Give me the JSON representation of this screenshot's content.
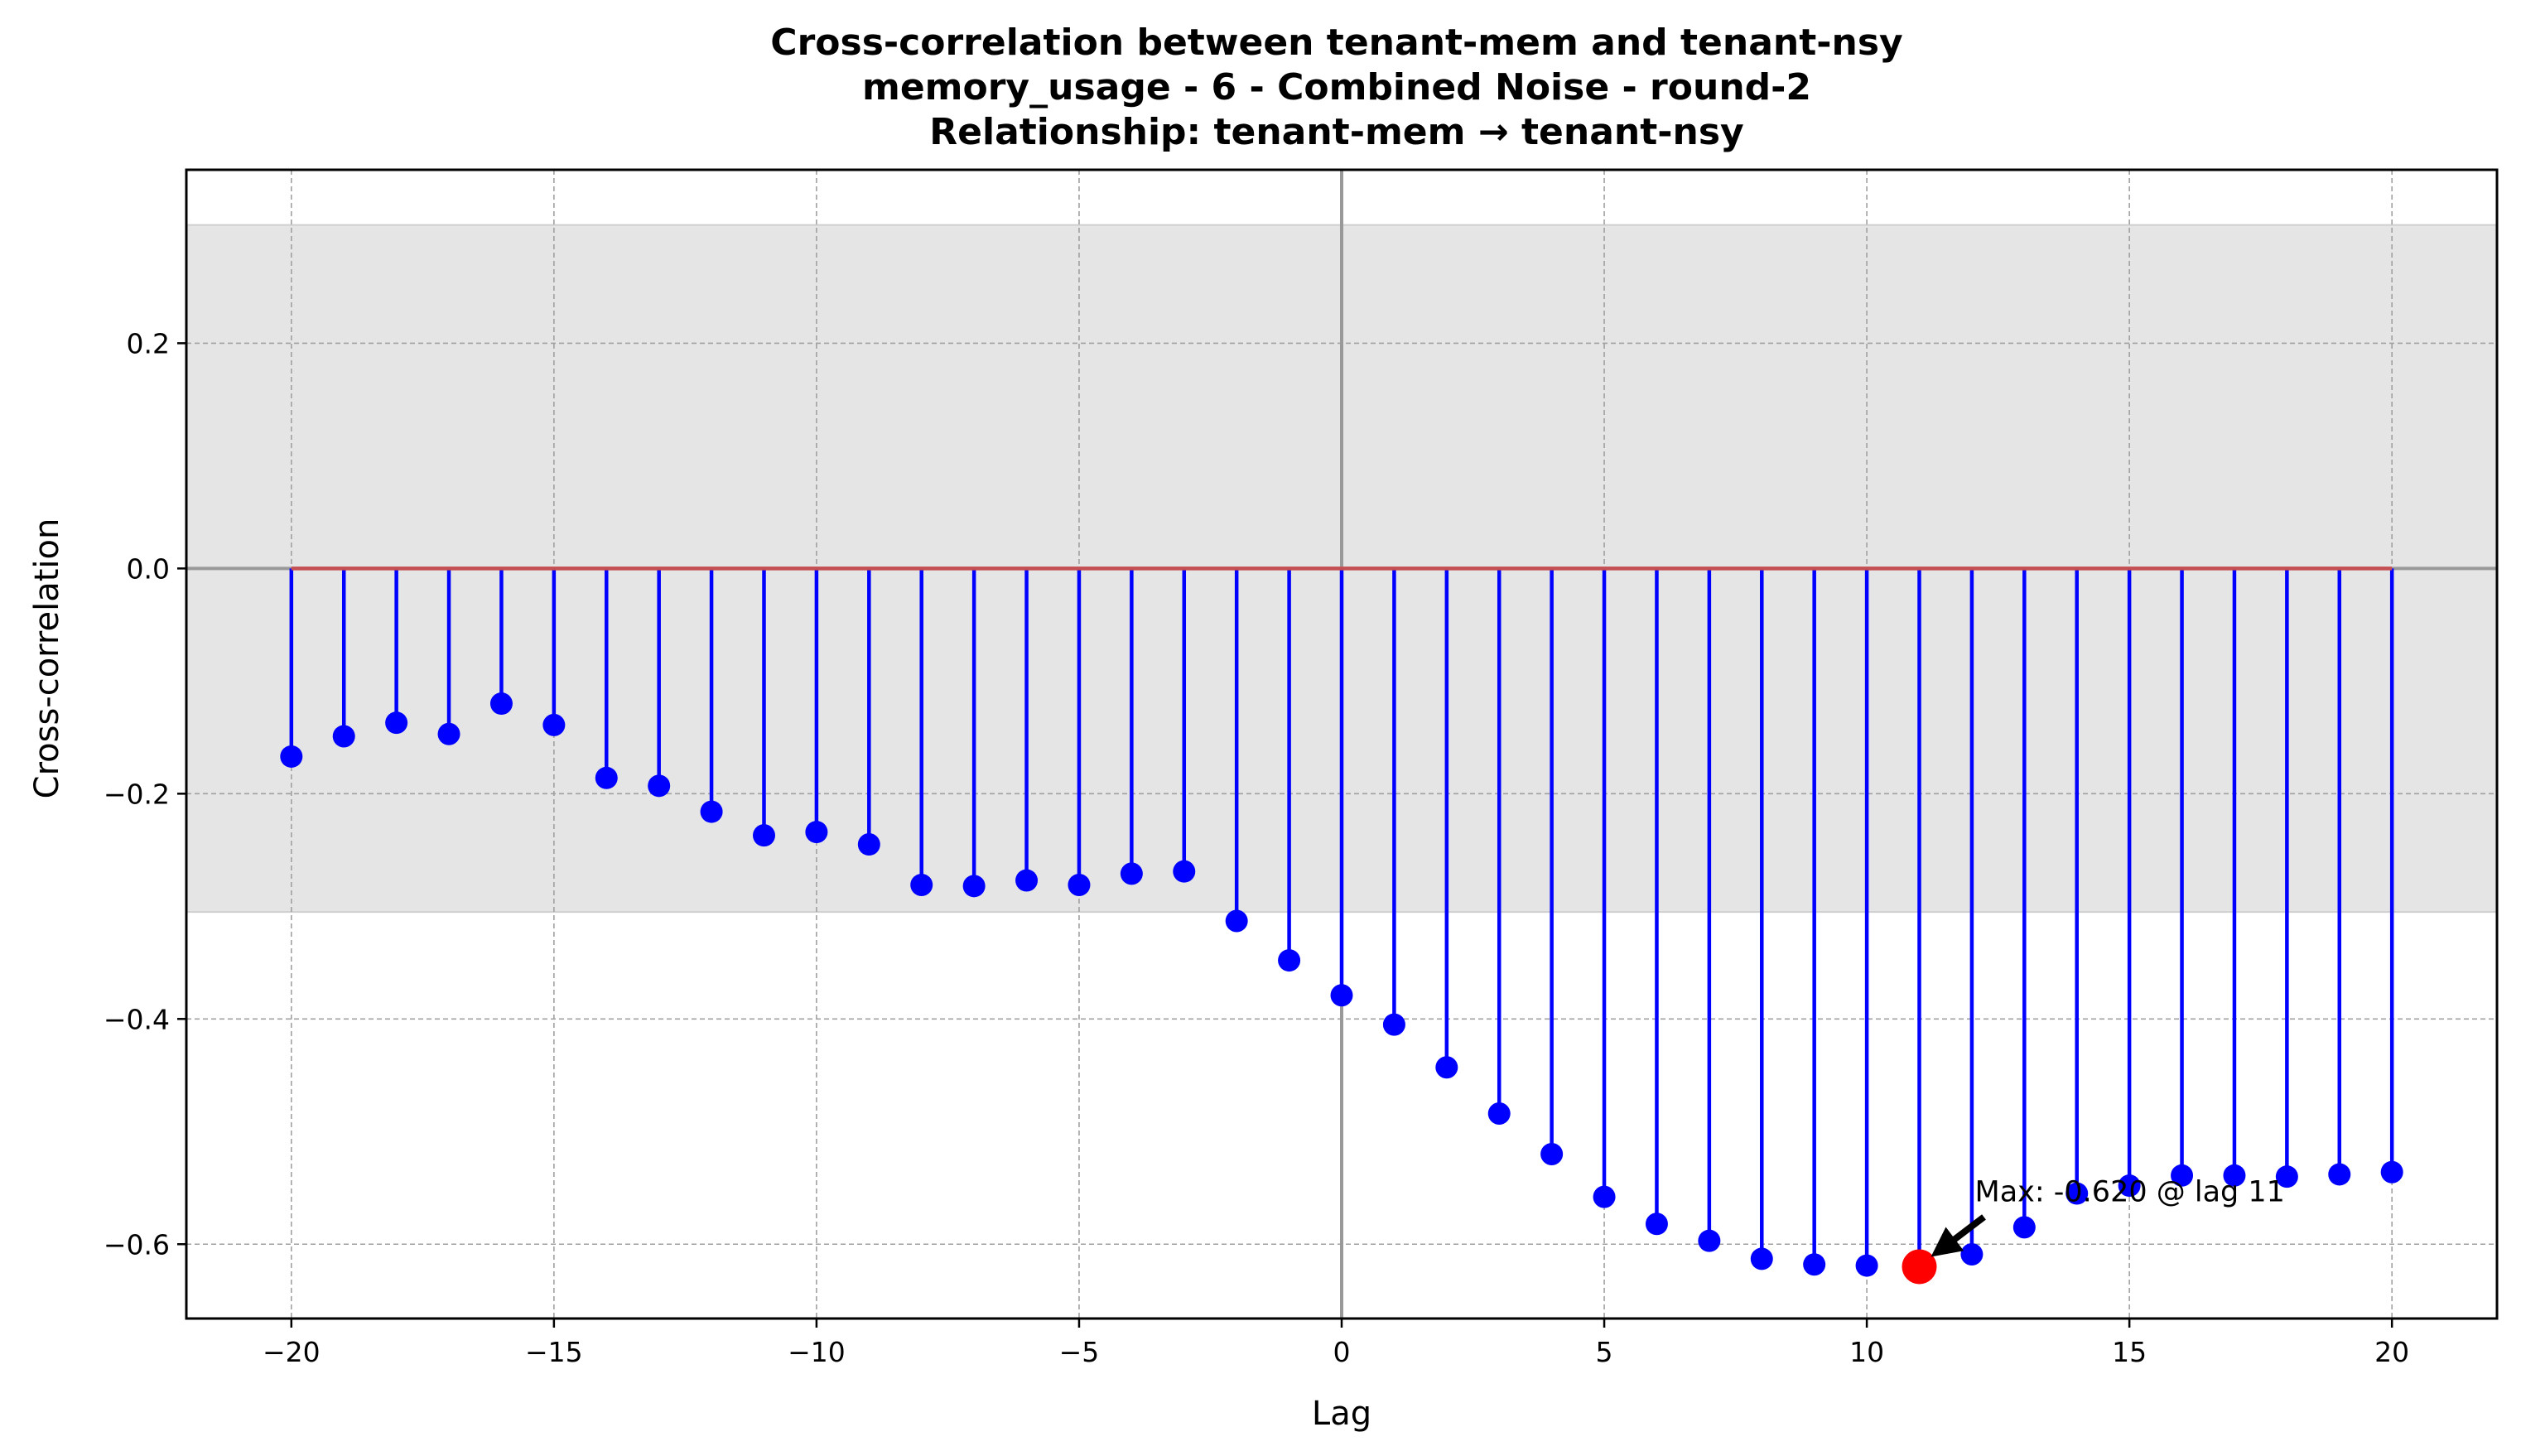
{
  "chart_data": {
    "type": "stem",
    "title_lines": [
      "Cross-correlation between tenant-mem and tenant-nsy",
      "memory_usage - 6 - Combined Noise - round-2",
      "Relationship: tenant-mem → tenant-nsy"
    ],
    "xlabel": "Lag",
    "ylabel": "Cross-correlation",
    "xlim": [
      -22,
      22
    ],
    "ylim": [
      -0.666,
      0.354
    ],
    "x_ticks": [
      -20,
      -15,
      -10,
      -5,
      0,
      5,
      10,
      15,
      20
    ],
    "x_tick_labels": [
      "−20",
      "−15",
      "−10",
      "−5",
      "0",
      "5",
      "10",
      "15",
      "20"
    ],
    "y_ticks": [
      -0.6,
      -0.4,
      -0.2,
      0.0,
      0.2
    ],
    "y_tick_labels": [
      "−0.6",
      "−0.4",
      "−0.2",
      "0.0",
      "0.2"
    ],
    "grid": true,
    "confidence_band": [
      -0.305,
      0.305
    ],
    "x": [
      -20,
      -19,
      -18,
      -17,
      -16,
      -15,
      -14,
      -13,
      -12,
      -11,
      -10,
      -9,
      -8,
      -7,
      -6,
      -5,
      -4,
      -3,
      -2,
      -1,
      0,
      1,
      2,
      3,
      4,
      5,
      6,
      7,
      8,
      9,
      10,
      11,
      12,
      13,
      14,
      15,
      16,
      17,
      18,
      19,
      20
    ],
    "values": [
      -0.167,
      -0.149,
      -0.137,
      -0.147,
      -0.12,
      -0.139,
      -0.186,
      -0.193,
      -0.216,
      -0.237,
      -0.234,
      -0.245,
      -0.281,
      -0.282,
      -0.277,
      -0.281,
      -0.271,
      -0.269,
      -0.313,
      -0.348,
      -0.379,
      -0.405,
      -0.443,
      -0.484,
      -0.52,
      -0.558,
      -0.582,
      -0.597,
      -0.613,
      -0.618,
      -0.619,
      -0.62,
      -0.609,
      -0.585,
      -0.555,
      -0.548,
      -0.539,
      -0.539,
      -0.54,
      -0.538,
      -0.536
    ],
    "highlight": {
      "x": 11,
      "y": -0.62,
      "color": "#ff0000"
    },
    "annotation": {
      "text": "Max: -0.620 @ lag 11"
    },
    "colors": {
      "stem": "#0000ff",
      "marker": "#0000ff",
      "baseline": "#c44e52",
      "band": "#e5e5e5",
      "grid": "#a0a0a0",
      "zero_line": "#999999"
    }
  }
}
